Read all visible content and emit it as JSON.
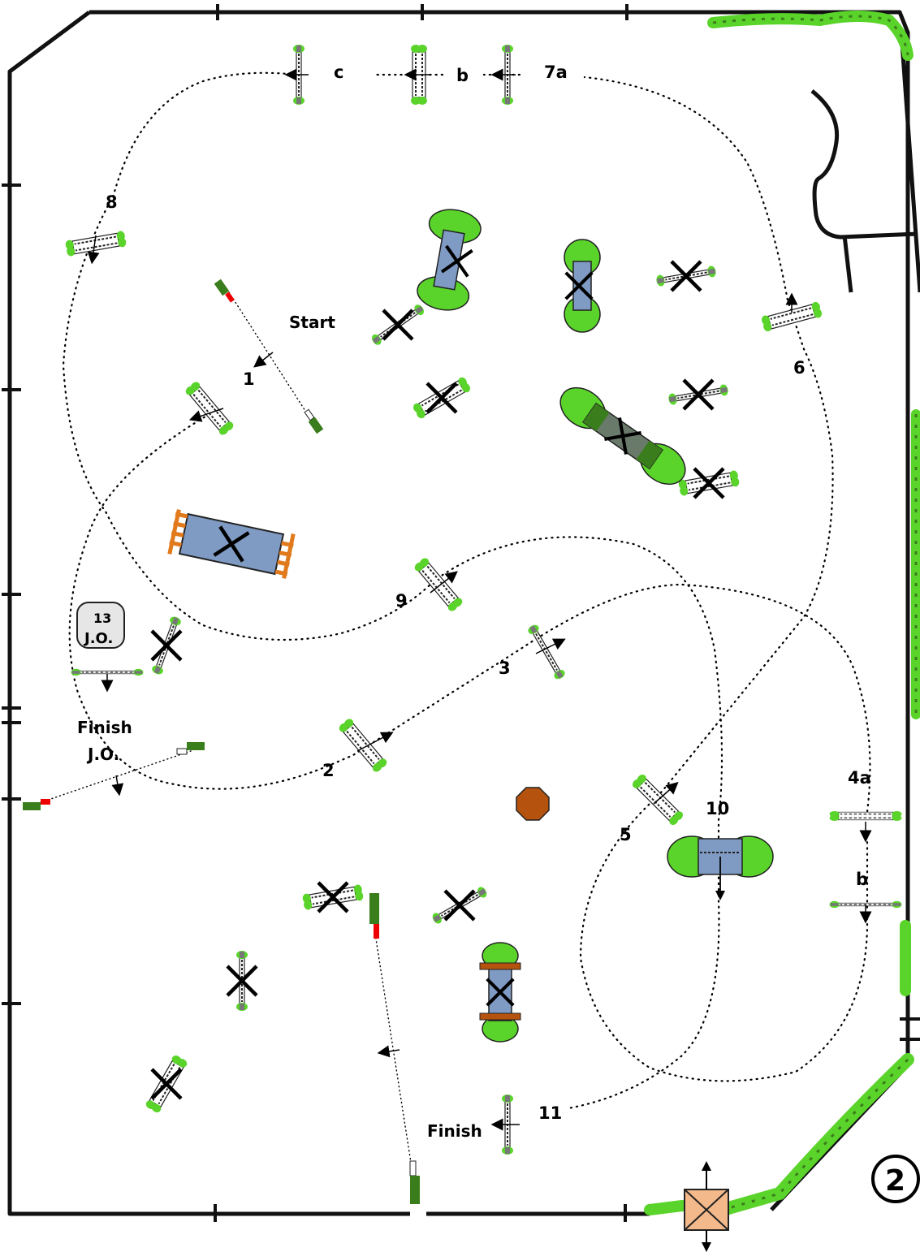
{
  "course_number": "2",
  "labels": {
    "start": "Start",
    "finish": "Finish",
    "finish_jo_1": "Finish",
    "finish_jo_2": "J.O.",
    "jo_badge_num": "13",
    "jo_badge_text": "J.O."
  },
  "fence_numbers": {
    "n1": "1",
    "n2": "2",
    "n3": "3",
    "n4a": "4a",
    "n4b": "b",
    "n5": "5",
    "n6": "6",
    "n7a": "7a",
    "n7b": "b",
    "n7c": "c",
    "n8": "8",
    "n9": "9",
    "n10": "10",
    "n11": "11"
  },
  "colors": {
    "hedge": "#5ad42a",
    "hedge_dark": "#3a7d1c",
    "water_blue": "#7f9bc4",
    "rail_orange": "#e07a1c",
    "gate_fill": "#f4b98a",
    "octagon": "#b5520e",
    "badge_fill": "#e6e6e6"
  }
}
